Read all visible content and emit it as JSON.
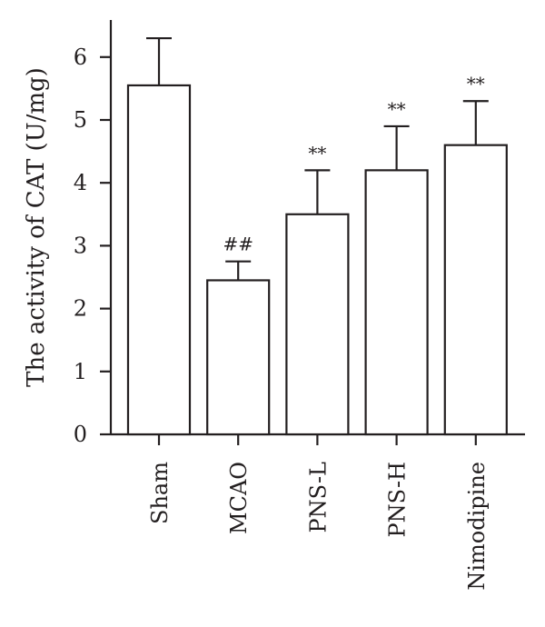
{
  "chart_data": {
    "type": "bar",
    "title": "",
    "xlabel": "",
    "ylabel": "The activity of CAT (U/mg)",
    "ylim": [
      0,
      6.5
    ],
    "yticks": [
      0,
      1,
      2,
      3,
      4,
      5,
      6
    ],
    "grid": false,
    "categories": [
      "Sham",
      "MCAO",
      "PNS-L",
      "PNS-H",
      "Nimodipine"
    ],
    "values": [
      5.55,
      2.45,
      3.5,
      4.2,
      4.6
    ],
    "error_upper": [
      6.3,
      2.75,
      4.2,
      4.9,
      5.3
    ],
    "annotations": [
      "",
      "##",
      "**",
      "**",
      "**"
    ],
    "colors": {
      "bar_fill": "#ffffff",
      "stroke": "#231f20"
    }
  }
}
